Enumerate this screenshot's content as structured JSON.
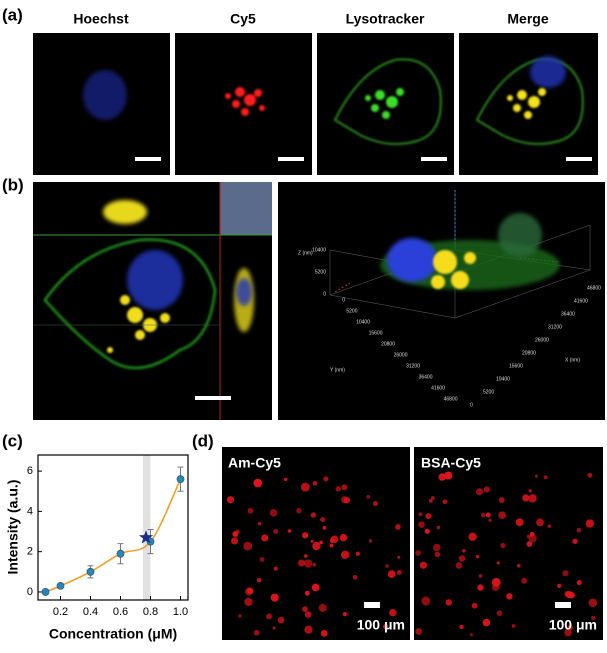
{
  "panels": {
    "a": "(a)",
    "b": "(b)",
    "c": "(c)",
    "d": "(d)"
  },
  "a": {
    "channels": [
      "Hoechst",
      "Cy5",
      "Lysotracker",
      "Merge"
    ]
  },
  "b": {
    "z_axis": "Z (nm)",
    "y_axis": "Y (nm)",
    "x_axis": "X (nm)",
    "z_ticks": [
      10400,
      5200,
      0
    ],
    "y_ticks": [
      0,
      5200,
      10400,
      15600,
      20800,
      26000,
      31200,
      36400,
      41600,
      46800
    ],
    "x_ticks": [
      0,
      5200,
      10400,
      15600,
      20800,
      26000,
      31200,
      36400,
      41600,
      46800
    ]
  },
  "chart_data": {
    "type": "scatter",
    "xlabel": "Concentration (μM)",
    "ylabel": "Intensity (a.u.)",
    "x": [
      0.1,
      0.2,
      0.4,
      0.6,
      0.8,
      1.0
    ],
    "values": [
      0,
      0.3,
      1.0,
      1.9,
      2.5,
      5.6
    ],
    "errors": [
      0.1,
      0.1,
      0.3,
      0.5,
      0.6,
      0.6
    ],
    "color": "#2b86b8",
    "fit_color": "#f39a1e",
    "highlight": {
      "x": 0.77,
      "y": 2.7,
      "color": "#1c2f86"
    },
    "band": [
      0.75,
      0.8
    ],
    "xlim": [
      0.05,
      1.05
    ],
    "ylim": [
      -0.4,
      6.8
    ],
    "xticks": [
      {
        "value": 0.2,
        "label": "0.2"
      },
      {
        "value": 0.4,
        "label": "0.4"
      },
      {
        "value": 0.6,
        "label": "0.6"
      },
      {
        "value": 0.8,
        "label": "0.8"
      },
      {
        "value": 1,
        "label": "1.0"
      }
    ],
    "yticks": [
      0,
      2,
      4,
      6
    ]
  },
  "d": {
    "images": [
      "Am-Cy5",
      "BSA-Cy5"
    ],
    "scale": "100 μm"
  }
}
